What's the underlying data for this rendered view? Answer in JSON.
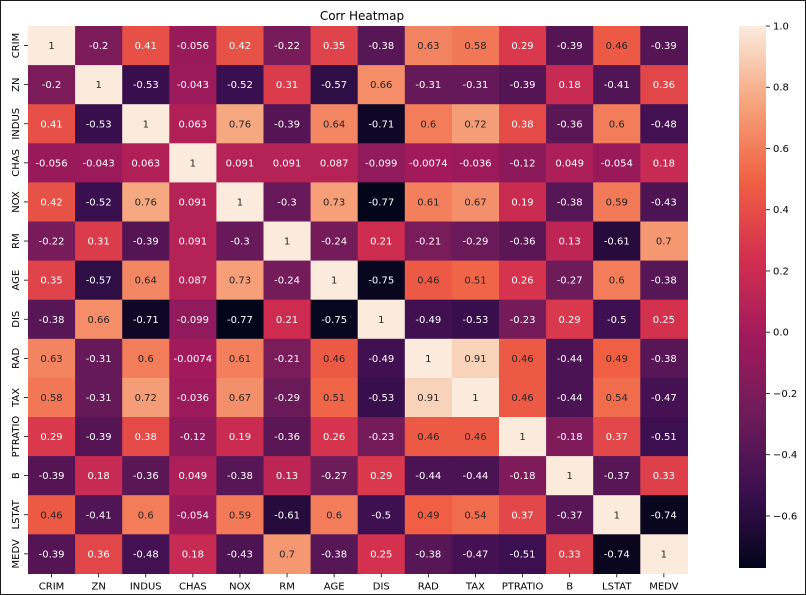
{
  "chart_data": {
    "type": "heatmap",
    "title": "Corr Heatmap",
    "xlabel": "",
    "ylabel": "",
    "labels": [
      "CRIM",
      "ZN",
      "INDUS",
      "CHAS",
      "NOX",
      "RM",
      "AGE",
      "DIS",
      "RAD",
      "TAX",
      "PTRATIO",
      "B",
      "LSTAT",
      "MEDV"
    ],
    "matrix": [
      [
        1,
        -0.2,
        0.41,
        -0.056,
        0.42,
        -0.22,
        0.35,
        -0.38,
        0.63,
        0.58,
        0.29,
        -0.39,
        0.46,
        -0.39
      ],
      [
        -0.2,
        1,
        -0.53,
        -0.043,
        -0.52,
        0.31,
        -0.57,
        0.66,
        -0.31,
        -0.31,
        -0.39,
        0.18,
        -0.41,
        0.36
      ],
      [
        0.41,
        -0.53,
        1,
        0.063,
        0.76,
        -0.39,
        0.64,
        -0.71,
        0.6,
        0.72,
        0.38,
        -0.36,
        0.6,
        -0.48
      ],
      [
        -0.056,
        -0.043,
        0.063,
        1,
        0.091,
        0.091,
        0.087,
        -0.099,
        -0.0074,
        -0.036,
        -0.12,
        0.049,
        -0.054,
        0.18
      ],
      [
        0.42,
        -0.52,
        0.76,
        0.091,
        1,
        -0.3,
        0.73,
        -0.77,
        0.61,
        0.67,
        0.19,
        -0.38,
        0.59,
        -0.43
      ],
      [
        -0.22,
        0.31,
        -0.39,
        0.091,
        -0.3,
        1,
        -0.24,
        0.21,
        -0.21,
        -0.29,
        -0.36,
        0.13,
        -0.61,
        0.7
      ],
      [
        0.35,
        -0.57,
        0.64,
        0.087,
        0.73,
        -0.24,
        1,
        -0.75,
        0.46,
        0.51,
        0.26,
        -0.27,
        0.6,
        -0.38
      ],
      [
        -0.38,
        0.66,
        -0.71,
        -0.099,
        -0.77,
        0.21,
        -0.75,
        1,
        -0.49,
        -0.53,
        -0.23,
        0.29,
        -0.5,
        0.25
      ],
      [
        0.63,
        -0.31,
        0.6,
        -0.0074,
        0.61,
        -0.21,
        0.46,
        -0.49,
        1,
        0.91,
        0.46,
        -0.44,
        0.49,
        -0.38
      ],
      [
        0.58,
        -0.31,
        0.72,
        -0.036,
        0.67,
        -0.29,
        0.51,
        -0.53,
        0.91,
        1,
        0.46,
        -0.44,
        0.54,
        -0.47
      ],
      [
        0.29,
        -0.39,
        0.38,
        -0.12,
        0.19,
        -0.36,
        0.26,
        -0.23,
        0.46,
        0.46,
        1,
        -0.18,
        0.37,
        -0.51
      ],
      [
        -0.39,
        0.18,
        -0.36,
        0.049,
        -0.38,
        0.13,
        -0.27,
        0.29,
        -0.44,
        -0.44,
        -0.18,
        1,
        -0.37,
        0.33
      ],
      [
        0.46,
        -0.41,
        0.6,
        -0.054,
        0.59,
        -0.61,
        0.6,
        -0.5,
        0.49,
        0.54,
        0.37,
        -0.37,
        1,
        -0.74
      ],
      [
        -0.39,
        0.36,
        -0.48,
        0.18,
        -0.43,
        0.7,
        -0.38,
        0.25,
        -0.38,
        -0.47,
        -0.51,
        0.33,
        -0.74,
        1
      ]
    ],
    "cell_labels": [
      [
        "1",
        "-0.2",
        "0.41",
        "-0.056",
        "0.42",
        "-0.22",
        "0.35",
        "-0.38",
        "0.63",
        "0.58",
        "0.29",
        "-0.39",
        "0.46",
        "-0.39"
      ],
      [
        "-0.2",
        "1",
        "-0.53",
        "-0.043",
        "-0.52",
        "0.31",
        "-0.57",
        "0.66",
        "-0.31",
        "-0.31",
        "-0.39",
        "0.18",
        "-0.41",
        "0.36"
      ],
      [
        "0.41",
        "-0.53",
        "1",
        "0.063",
        "0.76",
        "-0.39",
        "0.64",
        "-0.71",
        "0.6",
        "0.72",
        "0.38",
        "-0.36",
        "0.6",
        "-0.48"
      ],
      [
        "-0.056",
        "-0.043",
        "0.063",
        "1",
        "0.091",
        "0.091",
        "0.087",
        "-0.099",
        "-0.0074",
        "-0.036",
        "-0.12",
        "0.049",
        "-0.054",
        "0.18"
      ],
      [
        "0.42",
        "-0.52",
        "0.76",
        "0.091",
        "1",
        "-0.3",
        "0.73",
        "-0.77",
        "0.61",
        "0.67",
        "0.19",
        "-0.38",
        "0.59",
        "-0.43"
      ],
      [
        "-0.22",
        "0.31",
        "-0.39",
        "0.091",
        "-0.3",
        "1",
        "-0.24",
        "0.21",
        "-0.21",
        "-0.29",
        "-0.36",
        "0.13",
        "-0.61",
        "0.7"
      ],
      [
        "0.35",
        "-0.57",
        "0.64",
        "0.087",
        "0.73",
        "-0.24",
        "1",
        "-0.75",
        "0.46",
        "0.51",
        "0.26",
        "-0.27",
        "0.6",
        "-0.38"
      ],
      [
        "-0.38",
        "0.66",
        "-0.71",
        "-0.099",
        "-0.77",
        "0.21",
        "-0.75",
        "1",
        "-0.49",
        "-0.53",
        "-0.23",
        "0.29",
        "-0.5",
        "0.25"
      ],
      [
        "0.63",
        "-0.31",
        "0.6",
        "-0.0074",
        "0.61",
        "-0.21",
        "0.46",
        "-0.49",
        "1",
        "0.91",
        "0.46",
        "-0.44",
        "0.49",
        "-0.38"
      ],
      [
        "0.58",
        "-0.31",
        "0.72",
        "-0.036",
        "0.67",
        "-0.29",
        "0.51",
        "-0.53",
        "0.91",
        "1",
        "0.46",
        "-0.44",
        "0.54",
        "-0.47"
      ],
      [
        "0.29",
        "-0.39",
        "0.38",
        "-0.12",
        "0.19",
        "-0.36",
        "0.26",
        "-0.23",
        "0.46",
        "0.46",
        "1",
        "-0.18",
        "0.37",
        "-0.51"
      ],
      [
        "-0.39",
        "0.18",
        "-0.36",
        "0.049",
        "-0.38",
        "0.13",
        "-0.27",
        "0.29",
        "-0.44",
        "-0.44",
        "-0.18",
        "1",
        "-0.37",
        "0.33"
      ],
      [
        "0.46",
        "-0.41",
        "0.6",
        "-0.054",
        "0.59",
        "-0.61",
        "0.6",
        "-0.5",
        "0.49",
        "0.54",
        "0.37",
        "-0.37",
        "1",
        "-0.74"
      ],
      [
        "-0.39",
        "0.36",
        "-0.48",
        "0.18",
        "-0.43",
        "0.7",
        "-0.38",
        "0.25",
        "-0.38",
        "-0.47",
        "-0.51",
        "0.33",
        "-0.74",
        "1"
      ]
    ],
    "colorbar": {
      "vmin": -0.77,
      "vmax": 1.0,
      "ticks": [
        1.0,
        0.8,
        0.6,
        0.4,
        0.2,
        0.0,
        -0.2,
        -0.4,
        -0.6
      ],
      "tick_labels": [
        "1.0",
        "0.8",
        "0.6",
        "0.4",
        "0.2",
        "0.0",
        "−0.2",
        "−0.4",
        "−0.6"
      ],
      "colormap": "rocket"
    },
    "grid": false,
    "colors": {
      "light_text": "#ffffff",
      "dark_text": "#262626",
      "stops": [
        "#03051a",
        "#3b0f50",
        "#6f1b5a",
        "#a11a5b",
        "#d32f4f",
        "#f06043",
        "#f6a47c",
        "#faebdd"
      ]
    }
  }
}
